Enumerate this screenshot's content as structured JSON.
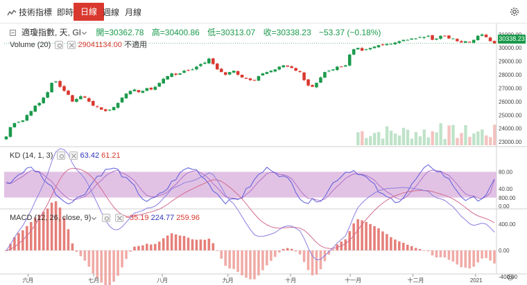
{
  "toolbar": {
    "tech_label": "技術指標",
    "tabs": [
      "即時",
      "日線",
      "週線",
      "月線"
    ],
    "active_tab": "日線"
  },
  "main_legend": {
    "name": "適瓊指數, 天, GI",
    "open": "開=30362.78",
    "high": "高=30400.86",
    "low": "低=30313.07",
    "close": "收=30338.23",
    "change": "~53.37 (~0.18%)"
  },
  "volume_legend": {
    "label": "Volume (20)",
    "value": "29041134.00",
    "na": "不適用"
  },
  "kd_legend": {
    "label": "KD (14, 1, 3)",
    "k": "63.42",
    "d": "61.21"
  },
  "macd_legend": {
    "label": "MACD (12, 26, close, 9)",
    "v1": "~35.19",
    "v2": "224.77",
    "v3": "259.96"
  },
  "last_price_tag": "30338.23",
  "price_axis": [
    "31000.00",
    "30000.00",
    "29000.00",
    "28000.00",
    "27000.00",
    "26000.00",
    "25000.00",
    "24000.00",
    "23000.00"
  ],
  "kd_axis": [
    "80.00",
    "40.00",
    "0.00"
  ],
  "macd_axis": [
    "800.00",
    "400.00",
    "0.00",
    "-400.00"
  ],
  "time_axis": [
    "六月",
    "七月",
    "八月",
    "九月",
    "十月",
    "十一月",
    "十二月",
    "2021"
  ],
  "colors": {
    "up": "#1a9a4b",
    "down": "#d9382f",
    "k_line": "#5a5adb",
    "d_line": "#b070c8",
    "band": "#d9b3dd",
    "accent": "#d9382f"
  },
  "chart_data": {
    "type": "candlestick",
    "price_range": [
      22800,
      31300
    ],
    "last_close": 30338.23,
    "close_path": [
      23400,
      24100,
      24400,
      24500,
      24600,
      25000,
      25300,
      25700,
      25900,
      26300,
      26700,
      27400,
      27500,
      27100,
      26800,
      26500,
      26000,
      26200,
      26400,
      26300,
      26000,
      25700,
      25600,
      25400,
      25300,
      25400,
      25600,
      25900,
      26300,
      26600,
      26800,
      26900,
      26700,
      26800,
      27000,
      26900,
      27100,
      27400,
      27700,
      27900,
      28100,
      28000,
      28100,
      28300,
      28300,
      28400,
      28600,
      28800,
      28900,
      29200,
      28800,
      28400,
      28200,
      28000,
      28200,
      28300,
      28000,
      27800,
      27700,
      27600,
      27600,
      27900,
      28100,
      28200,
      28300,
      28400,
      28600,
      28700,
      28600,
      28500,
      28300,
      28200,
      27600,
      27200,
      27100,
      27400,
      27800,
      28200,
      28300,
      28400,
      28600,
      28600,
      28700,
      29500,
      29900,
      30000,
      29800,
      29900,
      30000,
      30100,
      30200,
      30200,
      30300,
      30300,
      30400,
      30500,
      30600,
      30600,
      30700,
      30700,
      30800,
      30800,
      30900,
      30600,
      30700,
      30900,
      30900,
      30700,
      30700,
      30500,
      30400,
      30500,
      30400,
      30600,
      30900,
      31000,
      30800,
      30500,
      30338
    ],
    "kd": {
      "k_last": 63.42,
      "d_last": 61.21,
      "band": [
        20,
        80
      ]
    },
    "macd": {
      "last": -35.19,
      "dif": 224.77,
      "dea": 259.96
    }
  }
}
